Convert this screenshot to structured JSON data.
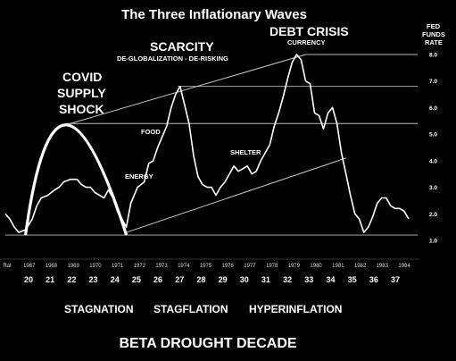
{
  "chart_data": {
    "type": "line",
    "title": "The Three Inflationary Waves",
    "ylabel": "FED FUNDS RATE",
    "ylabel_lines": [
      "FED",
      "FUNDS",
      "RATE"
    ],
    "yticks": [
      "1.0",
      "2.0",
      "3.0",
      "4.0",
      "5.0",
      "6.0",
      "7.0",
      "8.0"
    ],
    "ylim": [
      1,
      8
    ],
    "year_ticks": [
      "Rat",
      "1967",
      "1968",
      "1969",
      "1970",
      "1971",
      "1972",
      "1973",
      "1974",
      "1975",
      "1976",
      "1977",
      "1978",
      "1979",
      "1980",
      "1981",
      "1982",
      "1983",
      "1984"
    ],
    "index_ticks": [
      "20",
      "21",
      "22",
      "23",
      "24",
      "25",
      "26",
      "27",
      "28",
      "29",
      "30",
      "31",
      "32",
      "33",
      "34",
      "35",
      "36",
      "37"
    ],
    "xlim": [
      19.6,
      38.0
    ],
    "series": [
      {
        "x": [
          19.6,
          19.8,
          20.0,
          20.2,
          20.5,
          20.8,
          21.0,
          21.2,
          21.5,
          21.8,
          22.0,
          22.2,
          22.5,
          22.8,
          23.0,
          23.2,
          23.4,
          23.6,
          23.8,
          24.0,
          24.2,
          24.4,
          24.6,
          24.8,
          25.0,
          25.2,
          25.5,
          25.8,
          26.0,
          26.2,
          26.4,
          26.6,
          26.8,
          27.0,
          27.2,
          27.4,
          27.6,
          27.8,
          28.0,
          28.2,
          28.4,
          28.6,
          28.8,
          29.0,
          29.2,
          29.4,
          29.6,
          29.8,
          30.0,
          30.2,
          30.4,
          30.6,
          30.8,
          31.0,
          31.2,
          31.4,
          31.6,
          31.8,
          32.0,
          32.2,
          32.4,
          32.6,
          32.8,
          33.0,
          33.2,
          33.4,
          33.6,
          33.8,
          34.0,
          34.2,
          34.4,
          34.6,
          34.8,
          35.0,
          35.2,
          35.4,
          35.6,
          35.8,
          36.0,
          36.2,
          36.4,
          36.6,
          36.8,
          37.0,
          37.2,
          37.4,
          37.6
        ],
        "values": [
          2.0,
          1.8,
          1.5,
          1.3,
          1.4,
          1.8,
          2.3,
          2.6,
          2.7,
          2.9,
          3.0,
          3.2,
          3.3,
          3.3,
          3.1,
          3.0,
          3.0,
          2.8,
          2.7,
          2.6,
          2.9,
          2.6,
          2.1,
          1.8,
          1.5,
          2.4,
          3.0,
          3.2,
          3.9,
          4.0,
          4.5,
          4.9,
          5.3,
          6.0,
          6.5,
          6.8,
          6.1,
          5.4,
          4.2,
          3.4,
          3.1,
          3.0,
          3.0,
          2.7,
          3.0,
          3.2,
          3.5,
          3.8,
          3.6,
          3.7,
          3.8,
          3.5,
          3.6,
          4.0,
          4.3,
          4.6,
          5.3,
          5.8,
          6.4,
          7.1,
          7.7,
          8.0,
          7.8,
          7.0,
          6.9,
          5.8,
          5.7,
          5.2,
          5.8,
          6.0,
          5.4,
          4.3,
          3.5,
          2.7,
          2.0,
          1.8,
          1.3,
          1.5,
          1.9,
          2.4,
          2.6,
          2.6,
          2.3,
          2.2,
          2.2,
          2.1,
          1.8
        ]
      }
    ],
    "arch": {
      "x": [
        20.5,
        22.3,
        25.0
      ],
      "values": [
        1.2,
        5.35,
        1.2
      ]
    },
    "channel": {
      "upper": {
        "x": [
          22.3,
          33.0
        ],
        "values": [
          5.35,
          8.0
        ]
      },
      "lower": {
        "x": [
          25.0,
          34.8
        ],
        "values": [
          1.3,
          4.1
        ]
      }
    },
    "hlines": [
      {
        "x": [
          22.3,
          38.0
        ],
        "value": 5.4
      },
      {
        "x": [
          27.3,
          38.0
        ],
        "value": 6.8
      },
      {
        "x": [
          33.0,
          38.0
        ],
        "value": 8.0
      },
      {
        "x": [
          19.6,
          38.0
        ],
        "value": 1.2
      }
    ],
    "annotations": {
      "covid": [
        "COVID",
        "SUPPLY",
        "SHOCK"
      ],
      "scarcity": "SCARCITY",
      "deglobal": "DE-GLOBALIZATION  -  DE-RISKING",
      "debt": "DEBT CRISIS",
      "currency": "CURRENCY",
      "food": "FOOD",
      "energy": "ENERGY",
      "shelter": "SHELTER"
    },
    "eras": [
      "STAGNATION",
      "STAGFLATION",
      "HYPERINFLATION"
    ],
    "footer": "BETA DROUGHT DECADE"
  }
}
